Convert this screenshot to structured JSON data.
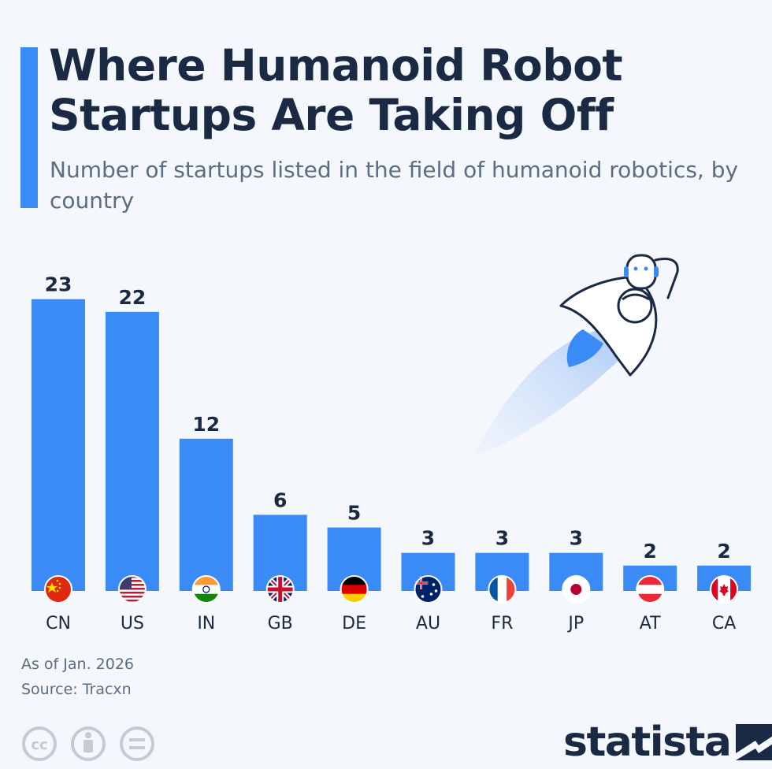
{
  "header": {
    "title": "Where Humanoid Robot Startups Are Taking Off",
    "subtitle": "Number of startups listed in the field of humanoid robotics, by country"
  },
  "chart_data": {
    "type": "bar",
    "categories": [
      "CN",
      "US",
      "IN",
      "GB",
      "DE",
      "AU",
      "FR",
      "JP",
      "AT",
      "CA"
    ],
    "values": [
      23,
      22,
      12,
      6,
      5,
      3,
      3,
      3,
      2,
      2
    ],
    "title": "Where Humanoid Robot Startups Are Taking Off",
    "subtitle": "Number of startups listed in the field of humanoid robotics, by country",
    "grid": false,
    "value_labels": true,
    "bar_color": "#3b8bf6"
  },
  "footer": {
    "as_of": "As of Jan. 2026",
    "source": "Source: Tracxn",
    "brand": "statista"
  },
  "icons": {
    "flags": [
      "china-flag-icon",
      "usa-flag-icon",
      "india-flag-icon",
      "uk-flag-icon",
      "germany-flag-icon",
      "australia-flag-icon",
      "france-flag-icon",
      "japan-flag-icon",
      "austria-flag-icon",
      "canada-flag-icon"
    ],
    "illustration": "robot-rocket-icon",
    "license": [
      "cc-icon",
      "attribution-icon",
      "no-derivatives-icon"
    ]
  }
}
